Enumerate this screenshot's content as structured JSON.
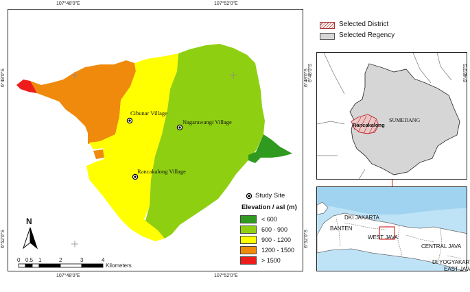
{
  "main_map": {
    "coords_top": [
      "107°48'0\"E",
      "107°52'0\"E"
    ],
    "coords_bottom": [
      "107°48'0\"E",
      "107°52'0\"E"
    ],
    "coords_left": [
      "6°48'0\"S",
      "6°52'0\"S"
    ],
    "coords_right": [
      "6°48'0\"S",
      "6°52'0\"S"
    ],
    "villages": [
      "Cibunar Village",
      "Nagarawangi Village",
      "Rancakalong Village"
    ],
    "study_site_label": "Study Site",
    "legend_title": "Elevation / asl (m)",
    "legend_items": [
      {
        "label": "< 600",
        "color": "#2f9a1f"
      },
      {
        "label": "600 - 900",
        "color": "#8fcf12"
      },
      {
        "label": "900 - 1200",
        "color": "#ffff00"
      },
      {
        "label": "1200 - 1500",
        "color": "#f08a0c"
      },
      {
        "label": "> 1500",
        "color": "#ef1c1c"
      }
    ],
    "north_label": "N",
    "scale_labels": [
      "0",
      "0.5",
      "1",
      "2",
      "3",
      "4"
    ],
    "scale_unit": "Kilometers"
  },
  "inset_legend": {
    "selected_district": "Selected District",
    "selected_regency": "Selected Regency"
  },
  "regency_map": {
    "coord_left": "6°48'0\"S",
    "coord_right": "6°48'0\"S",
    "regency_label": "SUMEDANG",
    "district_label": "Rancakalong"
  },
  "province_map": {
    "labels": [
      "DKI JAKARTA",
      "BANTEN",
      "WEST JAVA",
      "CENTRAL JAVA",
      "DI YOGYAKARTA",
      "EAST JAVA"
    ]
  }
}
